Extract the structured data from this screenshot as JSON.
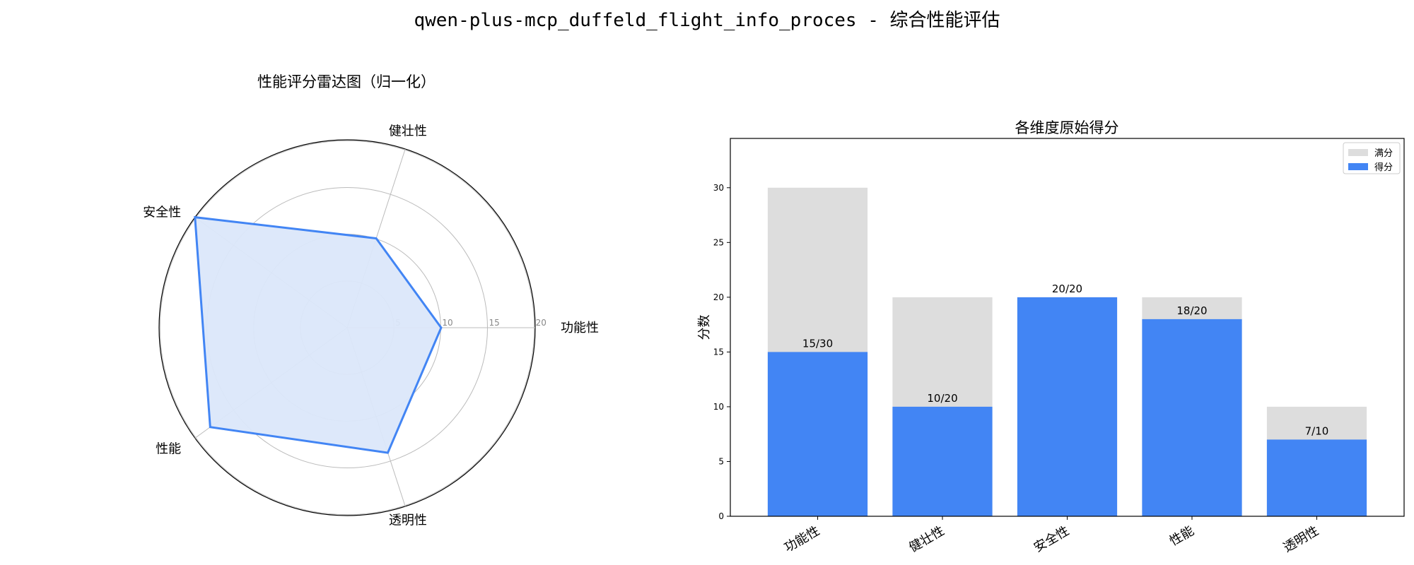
{
  "page": {
    "suptitle": "qwen-plus-mcp_duffeld_flight_info_proces - 综合性能评估"
  },
  "chart_data": [
    {
      "type": "radar",
      "title": "性能评分雷达图（归一化）",
      "categories": [
        "功能性",
        "健壮性",
        "安全性",
        "性能",
        "透明性"
      ],
      "values": [
        10,
        10,
        20,
        18,
        14
      ],
      "rlim": [
        0,
        20
      ],
      "rticks": [
        "5",
        "10",
        "15",
        "20"
      ],
      "colors": {
        "line": "#4285f4",
        "fill": "#dbe7fa",
        "grid": "#bbbbbb"
      }
    },
    {
      "type": "bar",
      "title": "各维度原始得分",
      "ylabel": "分数",
      "categories": [
        "功能性",
        "健壮性",
        "安全性",
        "性能",
        "透明性"
      ],
      "ylim": [
        0,
        34.5
      ],
      "yticks": [
        "0",
        "5",
        "10",
        "15",
        "20",
        "25",
        "30"
      ],
      "legend_position": "top-right",
      "series": [
        {
          "name": "满分",
          "values": [
            30,
            20,
            20,
            20,
            10
          ],
          "color": "#dddddd"
        },
        {
          "name": "得分",
          "values": [
            15,
            10,
            20,
            18,
            7
          ],
          "color": "#4285f4"
        }
      ],
      "data_labels": [
        "15/30",
        "10/20",
        "20/20",
        "18/20",
        "7/10"
      ]
    }
  ]
}
